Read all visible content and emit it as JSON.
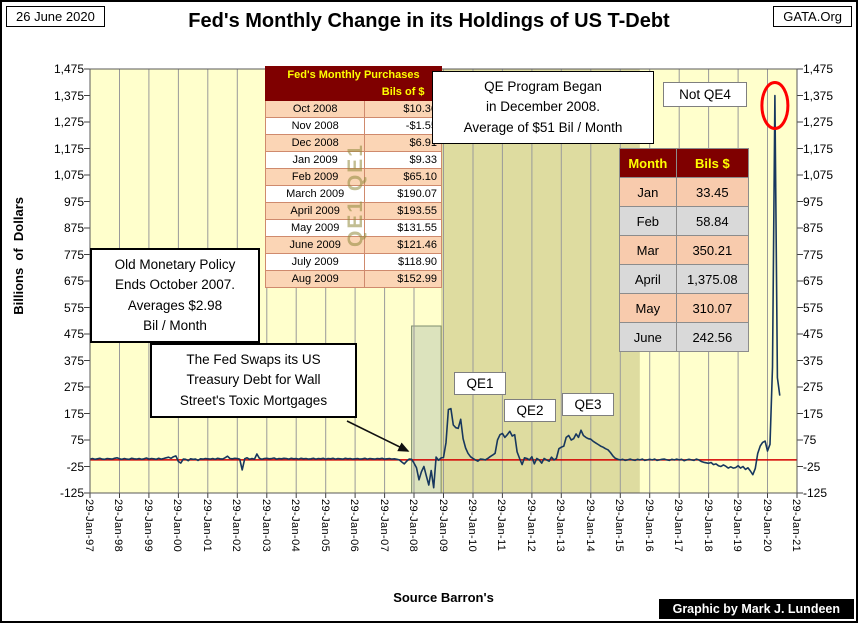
{
  "header": {
    "date": "26 June 2020",
    "title": "Fed's Monthly Change in its Holdings of US T-Debt",
    "org": "GATA.Org"
  },
  "footer": {
    "source": "Source Barron's",
    "credit": "Graphic by Mark J. Lundeen"
  },
  "annotations": {
    "qe_program": [
      "QE Program Began",
      "in December 2008.",
      "Average of $51 Bil / Month"
    ],
    "old_policy": [
      "Old Monetary Policy",
      "Ends October 2007.",
      "Averages $2.98",
      "Bil / Month"
    ],
    "fed_swaps": [
      "The Fed Swaps its US",
      "Treasury Debt for Wall",
      "Street's Toxic Mortgages"
    ],
    "not_qe4": "Not QE4",
    "qe1": "QE1",
    "qe2": "QE2",
    "qe3": "QE3",
    "watermark": "QE1 QE1"
  },
  "tables": {
    "purchases": {
      "title": "Fed's Monthly Purchases",
      "col2_header": "Bils of $",
      "rows": [
        [
          "Oct 2008",
          "$10.36"
        ],
        [
          "Nov 2008",
          "-$1.55"
        ],
        [
          "Dec 2008",
          "$6.91"
        ],
        [
          "Jan 2009",
          "$9.33"
        ],
        [
          "Feb 2009",
          "$65.10"
        ],
        [
          "March 2009",
          "$190.07"
        ],
        [
          "April 2009",
          "$193.55"
        ],
        [
          "May 2009",
          "$131.55"
        ],
        [
          "June 2009",
          "$121.46"
        ],
        [
          "July 2009",
          "$118.90"
        ],
        [
          "Aug 2009",
          "$152.99"
        ]
      ]
    },
    "monthly2020": {
      "headers": [
        "Month",
        "Bils $"
      ],
      "rows": [
        [
          "Jan",
          "33.45"
        ],
        [
          "Feb",
          "58.84"
        ],
        [
          "Mar",
          "350.21"
        ],
        [
          "April",
          "1,375.08"
        ],
        [
          "May",
          "310.07"
        ],
        [
          "June",
          "242.56"
        ]
      ]
    }
  },
  "chart_data": {
    "type": "line",
    "title": "Fed's Monthly Change in its Holdings of US T-Debt",
    "xlabel": "",
    "ylabel": "Billions  of  Dollars",
    "ylim": [
      -125,
      1475
    ],
    "y_tick_step": 100,
    "grid": "vertical-only",
    "plot_bg": "#FFFFCC",
    "line_color": "#17375E",
    "zero_line_value": 0,
    "zero_line_color": "#D40000",
    "y_ticks": [
      "1,475",
      "1,375",
      "1,275",
      "1,175",
      "1,075",
      "975",
      "875",
      "775",
      "675",
      "575",
      "475",
      "375",
      "275",
      "175",
      "75",
      "-25",
      "-125"
    ],
    "x_ticks": [
      "29-Jan-97",
      "29-Jan-98",
      "29-Jan-99",
      "29-Jan-00",
      "29-Jan-01",
      "29-Jan-02",
      "29-Jan-03",
      "29-Jan-04",
      "29-Jan-05",
      "29-Jan-06",
      "29-Jan-07",
      "29-Jan-08",
      "29-Jan-09",
      "29-Jan-10",
      "29-Jan-11",
      "29-Jan-12",
      "29-Jan-13",
      "29-Jan-14",
      "29-Jan-15",
      "29-Jan-16",
      "29-Jan-17",
      "29-Jan-18",
      "29-Jan-19",
      "29-Jan-20",
      "29-Jan-21"
    ],
    "x_axis_total_months": 288,
    "regions": [
      {
        "name": "treasury-swap-highlight",
        "from_month": 131,
        "to_month": 143,
        "top_value": 505,
        "bottom_value": -125,
        "fill": "rgba(196,208,178,0.6)",
        "stroke": "#7e8e6e"
      },
      {
        "name": "qe-era-shading",
        "from_month": 143,
        "to_month": 224,
        "top_value": 1475,
        "bottom_value": -125,
        "fill": "rgba(125,117,27,0.25)",
        "stroke": "none"
      }
    ],
    "spike_circle": {
      "month": 279,
      "value": 1375.08
    },
    "series": [
      {
        "name": "Fed monthly change in US T-debt holdings ($ Bil)",
        "start": "Jan 1997",
        "frequency": "monthly",
        "values": [
          3,
          5,
          2,
          4,
          6,
          3,
          2,
          5,
          4,
          3,
          6,
          8,
          4,
          2,
          5,
          3,
          2,
          6,
          4,
          3,
          5,
          2,
          4,
          7,
          3,
          5,
          4,
          2,
          6,
          3,
          5,
          8,
          10,
          6,
          12,
          15,
          -6,
          -12,
          3,
          2,
          -3,
          4,
          2,
          3,
          -2,
          4,
          3,
          5,
          4,
          3,
          5,
          2,
          6,
          4,
          3,
          8,
          14,
          5,
          4,
          6,
          5,
          3,
          -38,
          4,
          8,
          2,
          5,
          3,
          22,
          6,
          2,
          5,
          6,
          4,
          5,
          7,
          3,
          5,
          4,
          6,
          5,
          3,
          6,
          4,
          5,
          3,
          6,
          4,
          5,
          3,
          4,
          6,
          3,
          5,
          4,
          6,
          3,
          5,
          4,
          6,
          3,
          5,
          4,
          3,
          6,
          4,
          5,
          3,
          4,
          5,
          3,
          4,
          6,
          3,
          5,
          4,
          3,
          5,
          4,
          6,
          3,
          4,
          5,
          3,
          4,
          2,
          0,
          -8,
          -15,
          -5,
          3,
          2,
          -12,
          -30,
          -75,
          -45,
          -25,
          -60,
          -95,
          -40,
          -105,
          10.36,
          -1.55,
          6.91,
          9.33,
          65.1,
          190.07,
          193.55,
          131.55,
          121.46,
          118.9,
          152.99,
          80,
          45,
          25,
          12,
          5,
          0,
          -5,
          3,
          2,
          0,
          5,
          12,
          18,
          25,
          75,
          95,
          100,
          85,
          95,
          108,
          90,
          95,
          30,
          5,
          -18,
          8,
          5,
          0,
          12,
          -15,
          5,
          0,
          -12,
          5,
          0,
          -5,
          10,
          0,
          5,
          42,
          48,
          52,
          85,
          92,
          75,
          80,
          98,
          85,
          112,
          92,
          85,
          80,
          78,
          70,
          64,
          58,
          52,
          48,
          42,
          38,
          28,
          15,
          6,
          2,
          0,
          2,
          -2,
          0,
          3,
          0,
          -2,
          2,
          0,
          3,
          -2,
          0,
          2,
          0,
          3,
          -2,
          0,
          2,
          3,
          0,
          -2,
          2,
          0,
          3,
          0,
          2,
          -3,
          0,
          2,
          0,
          -2,
          3,
          0,
          -6,
          -9,
          -11,
          -13,
          -10,
          -18,
          -15,
          -22,
          -25,
          -19,
          -24,
          -31,
          -26,
          -31,
          -29,
          -22,
          -31,
          -25,
          -36,
          -30,
          -42,
          -56,
          -32,
          24,
          52,
          66,
          71,
          33.45,
          58.84,
          350.21,
          1375.08,
          310.07,
          242.56
        ]
      }
    ]
  }
}
